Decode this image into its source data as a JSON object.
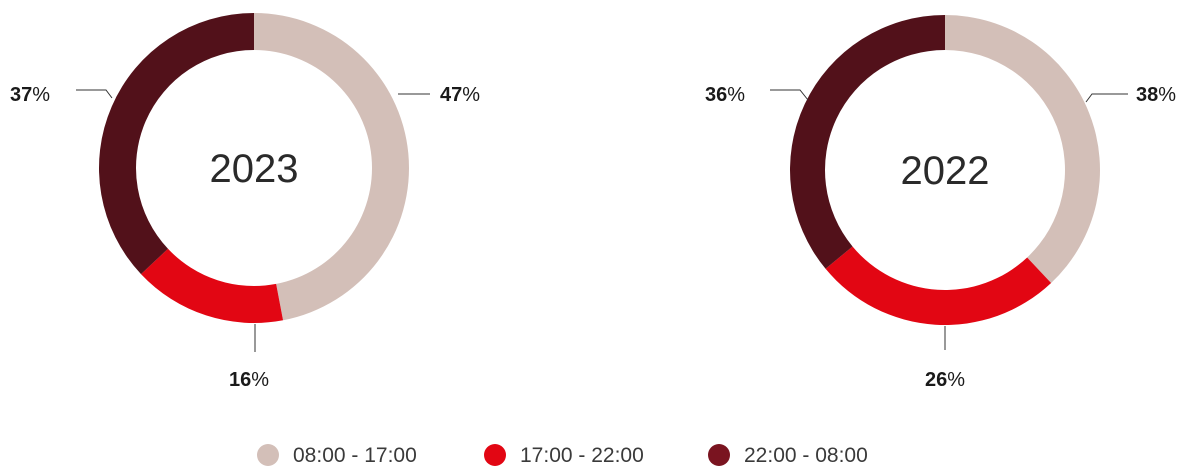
{
  "chart_data": [
    {
      "type": "pie",
      "center_label": "2023",
      "slices": [
        {
          "label": "08:00 - 17:00",
          "value": 47,
          "value_label": "47%"
        },
        {
          "label": "17:00 - 22:00",
          "value": 16,
          "value_label": "16%"
        },
        {
          "label": "22:00 - 08:00",
          "value": 37,
          "value_label": "37%"
        }
      ]
    },
    {
      "type": "pie",
      "center_label": "2022",
      "slices": [
        {
          "label": "08:00 - 17:00",
          "value": 38,
          "value_label": "38%"
        },
        {
          "label": "17:00 - 22:00",
          "value": 26,
          "value_label": "26%"
        },
        {
          "label": "22:00 - 08:00",
          "value": 36,
          "value_label": "36%"
        }
      ]
    }
  ],
  "legend": {
    "placement": "bottom-center",
    "items": [
      {
        "label": "08:00 - 17:00",
        "color": "#d3bfb8"
      },
      {
        "label": "17:00 - 22:00",
        "color": "#e20613"
      },
      {
        "label": "22:00 - 08:00",
        "color": "#7a1420"
      }
    ]
  },
  "ring_colors": [
    "#d3bfb8",
    "#e20613",
    "#52111a"
  ]
}
